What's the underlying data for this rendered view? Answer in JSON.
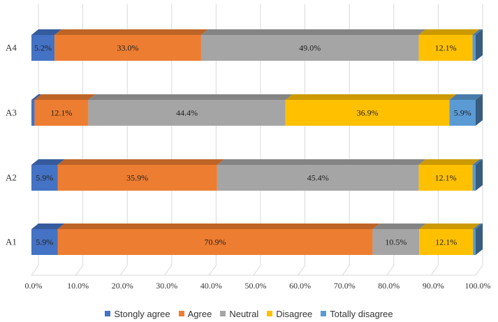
{
  "chart_data": {
    "type": "bar",
    "orientation": "horizontal",
    "stacked": true,
    "normalized": true,
    "style": "3d",
    "categories": [
      "A1",
      "A2",
      "A3",
      "A4"
    ],
    "series": [
      {
        "name": "Stongly agree",
        "color": "#4472C4",
        "values": [
          5.9,
          5.9,
          0.7,
          5.2
        ],
        "labels": [
          "5.9%",
          "5.9%",
          "",
          "5.2%"
        ]
      },
      {
        "name": "Agree",
        "color": "#ED7D31",
        "values": [
          70.9,
          35.9,
          12.1,
          33.0
        ],
        "labels": [
          "70.9%",
          "35.9%",
          "12.1%",
          "33.0%"
        ]
      },
      {
        "name": "Neutral",
        "color": "#A5A5A5",
        "values": [
          10.5,
          45.4,
          44.4,
          49.0
        ],
        "labels": [
          "10.5%",
          "45.4%",
          "44.4%",
          "49.0%"
        ]
      },
      {
        "name": "Disagree",
        "color": "#FFC000",
        "values": [
          12.1,
          12.1,
          36.9,
          12.1
        ],
        "labels": [
          "12.1%",
          "12.1%",
          "36.9%",
          "12.1%"
        ]
      },
      {
        "name": "Totally disagree",
        "color": "#5B9BD5",
        "values": [
          0.6,
          0.7,
          5.9,
          0.7
        ],
        "labels": [
          "",
          "",
          "5.9%",
          ""
        ]
      }
    ],
    "x_ticks": [
      "0.0%",
      "10.0%",
      "20.0%",
      "30.0%",
      "40.0%",
      "50.0%",
      "60.0%",
      "70.0%",
      "80.0%",
      "90.0%",
      "100.0%"
    ],
    "xlim": [
      0,
      100
    ],
    "grid": true,
    "legend_position": "bottom"
  }
}
